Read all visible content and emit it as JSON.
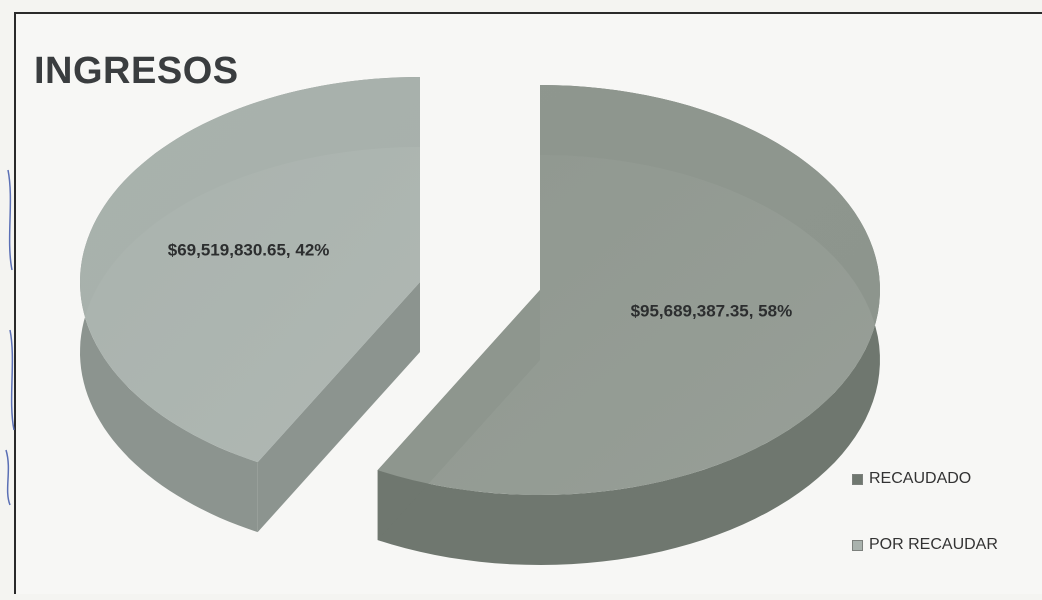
{
  "chart_data": {
    "type": "pie",
    "title": "INGRESOS",
    "slices": [
      {
        "label": "RECAUDADO",
        "value": 95689387.35,
        "percent": 58,
        "data_label": "$95,689,387.35, 58%",
        "color": "#8f978f",
        "side_color": "#6f776f"
      },
      {
        "label": "POR RECAUDAR",
        "value": 69519830.65,
        "percent": 42,
        "data_label": "$69,519,830.65, 42%",
        "color": "#a9b2ad",
        "side_color": "#8c948f"
      }
    ],
    "legend_position": "bottom-right",
    "exploded": true,
    "three_d": true
  }
}
